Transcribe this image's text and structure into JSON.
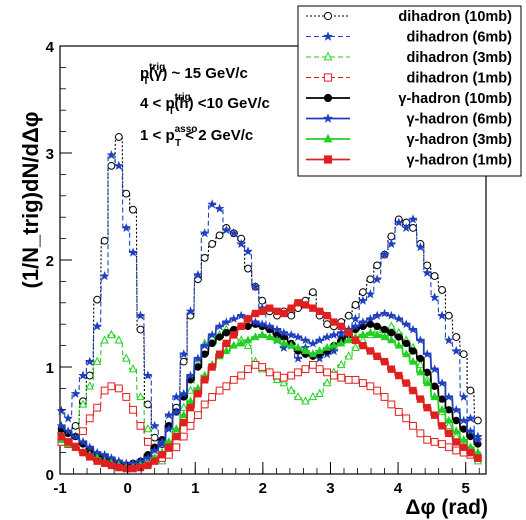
{
  "chart_data": {
    "type": "line",
    "title": "",
    "xlabel": "Δφ (rad)",
    "ylabel": "(1/N_trig)dN/dΔφ",
    "xlim": [
      -1.0,
      5.3
    ],
    "ylim": [
      0,
      4
    ],
    "xticks": [
      -1,
      0,
      1,
      2,
      3,
      4,
      5
    ],
    "yticks": [
      0,
      1,
      2,
      3,
      4
    ],
    "grid": false,
    "legend_position": "top-right",
    "annotations": [
      {
        "base": "p",
        "sub": "T",
        "sup": "trig",
        "tail": "(γ) ~ 15 GeV/c"
      },
      {
        "head": "4 < ",
        "base": "p",
        "sub": "T",
        "sup": "trig",
        "tail": "(h) <10 GeV/c"
      },
      {
        "head": "1 < ",
        "base": "p",
        "sub": "T",
        "sup": "asso",
        "tail": " < 2 GeV/c"
      }
    ],
    "x": [
      -0.98,
      -0.88,
      -0.77,
      -0.66,
      -0.56,
      -0.45,
      -0.34,
      -0.24,
      -0.13,
      -0.02,
      0.08,
      0.19,
      0.3,
      0.4,
      0.51,
      0.61,
      0.72,
      0.83,
      0.93,
      1.04,
      1.14,
      1.25,
      1.36,
      1.46,
      1.57,
      1.68,
      1.78,
      1.89,
      1.99,
      2.1,
      2.21,
      2.31,
      2.42,
      2.52,
      2.63,
      2.74,
      2.84,
      2.95,
      3.05,
      3.16,
      3.27,
      3.37,
      3.48,
      3.59,
      3.69,
      3.8,
      3.9,
      4.01,
      4.12,
      4.22,
      4.33,
      4.43,
      4.54,
      4.65,
      4.75,
      4.86,
      4.97,
      5.07,
      5.18
    ],
    "series": [
      {
        "name": "dihadron (10mb)",
        "color": "#000000",
        "dash": "dot",
        "marker": "open-circle",
        "values": [
          0.38,
          0.35,
          0.45,
          0.68,
          0.92,
          1.63,
          2.18,
          2.88,
          3.15,
          2.62,
          2.47,
          1.35,
          0.65,
          0.34,
          0.28,
          0.45,
          0.62,
          1.05,
          1.48,
          1.82,
          2.02,
          2.15,
          2.23,
          2.3,
          2.25,
          2.2,
          1.92,
          1.75,
          1.62,
          1.52,
          1.48,
          1.52,
          1.48,
          1.55,
          1.62,
          1.7,
          1.48,
          1.4,
          1.38,
          1.42,
          1.48,
          1.58,
          1.7,
          1.82,
          1.95,
          2.05,
          2.22,
          2.38,
          2.35,
          2.3,
          2.15,
          1.95,
          1.85,
          1.72,
          1.48,
          1.28,
          1.12,
          0.78,
          0.5
        ]
      },
      {
        "name": "dihadron (6mb)",
        "color": "#1f3fbf",
        "dash": "dash",
        "marker": "star",
        "values": [
          0.59,
          0.52,
          0.75,
          0.92,
          1.05,
          1.38,
          1.85,
          2.98,
          2.88,
          2.3,
          2.07,
          1.48,
          0.92,
          0.45,
          0.28,
          0.55,
          0.72,
          1.12,
          1.52,
          1.86,
          2.25,
          2.52,
          2.48,
          2.28,
          2.25,
          2.15,
          2.08,
          1.75,
          1.55,
          1.35,
          1.25,
          1.18,
          1.2,
          1.08,
          1.18,
          1.12,
          1.08,
          1.12,
          1.15,
          1.28,
          1.35,
          1.45,
          1.62,
          1.68,
          1.82,
          2.05,
          2.15,
          2.35,
          2.3,
          2.38,
          2.12,
          1.88,
          1.65,
          1.48,
          1.25,
          1.15,
          0.72,
          0.52,
          0.35
        ]
      },
      {
        "name": "dihadron (3mb)",
        "color": "#22d022",
        "dash": "dash",
        "marker": "open-triangle",
        "values": [
          0.38,
          0.3,
          0.35,
          0.65,
          0.82,
          1.05,
          1.25,
          1.3,
          1.25,
          1.08,
          0.98,
          0.72,
          0.42,
          0.18,
          0.12,
          0.2,
          0.38,
          0.62,
          0.78,
          1.02,
          1.22,
          1.28,
          1.3,
          1.35,
          1.32,
          1.25,
          1.2,
          1.05,
          0.98,
          0.95,
          0.88,
          0.85,
          0.78,
          0.72,
          0.68,
          0.72,
          0.75,
          0.85,
          0.95,
          1.02,
          1.1,
          1.18,
          1.25,
          1.3,
          1.35,
          1.32,
          1.38,
          1.32,
          1.25,
          1.18,
          1.02,
          0.88,
          0.72,
          0.58,
          0.45,
          0.35,
          0.25,
          0.18,
          0.12
        ]
      },
      {
        "name": "dihadron (1mb)",
        "color": "#e02020",
        "dash": "dash",
        "marker": "open-square",
        "values": [
          0.3,
          0.28,
          0.32,
          0.4,
          0.52,
          0.62,
          0.78,
          0.82,
          0.8,
          0.72,
          0.6,
          0.45,
          0.3,
          0.2,
          0.15,
          0.18,
          0.25,
          0.35,
          0.45,
          0.55,
          0.65,
          0.72,
          0.78,
          0.82,
          0.88,
          0.92,
          0.98,
          1.02,
          1.0,
          0.95,
          0.92,
          0.9,
          0.92,
          0.95,
          0.98,
          1.02,
          0.98,
          0.95,
          0.92,
          0.9,
          0.88,
          0.88,
          0.85,
          0.82,
          0.78,
          0.72,
          0.65,
          0.58,
          0.52,
          0.45,
          0.38,
          0.32,
          0.3,
          0.28,
          0.25,
          0.22,
          0.2,
          0.18,
          0.15
        ]
      },
      {
        "name": "γ-hadron (10mb)",
        "color": "#000000",
        "dash": "solid",
        "marker": "filled-circle",
        "values": [
          0.42,
          0.38,
          0.35,
          0.28,
          0.22,
          0.18,
          0.15,
          0.12,
          0.1,
          0.08,
          0.1,
          0.12,
          0.18,
          0.25,
          0.32,
          0.45,
          0.58,
          0.72,
          0.88,
          1.0,
          1.12,
          1.22,
          1.28,
          1.32,
          1.35,
          1.38,
          1.38,
          1.4,
          1.38,
          1.35,
          1.3,
          1.28,
          1.22,
          1.15,
          1.12,
          1.1,
          1.12,
          1.15,
          1.2,
          1.25,
          1.3,
          1.35,
          1.38,
          1.4,
          1.38,
          1.35,
          1.32,
          1.28,
          1.22,
          1.15,
          1.08,
          0.95,
          0.82,
          0.7,
          0.6,
          0.5,
          0.42,
          0.35,
          0.28
        ]
      },
      {
        "name": "γ-hadron (6mb)",
        "color": "#1f3fbf",
        "dash": "solid",
        "marker": "star",
        "values": [
          0.45,
          0.4,
          0.35,
          0.3,
          0.25,
          0.2,
          0.18,
          0.15,
          0.12,
          0.1,
          0.1,
          0.12,
          0.15,
          0.22,
          0.3,
          0.42,
          0.58,
          0.75,
          0.92,
          1.08,
          1.2,
          1.3,
          1.38,
          1.42,
          1.45,
          1.48,
          1.45,
          1.42,
          1.4,
          1.38,
          1.35,
          1.32,
          1.3,
          1.28,
          1.25,
          1.22,
          1.25,
          1.28,
          1.3,
          1.32,
          1.35,
          1.38,
          1.42,
          1.45,
          1.48,
          1.5,
          1.48,
          1.45,
          1.4,
          1.35,
          1.25,
          1.12,
          0.98,
          0.85,
          0.72,
          0.6,
          0.5,
          0.4,
          0.32
        ]
      },
      {
        "name": "γ-hadron (3mb)",
        "color": "#22d022",
        "dash": "solid",
        "marker": "filled-triangle",
        "values": [
          0.32,
          0.28,
          0.25,
          0.2,
          0.18,
          0.15,
          0.12,
          0.1,
          0.08,
          0.06,
          0.06,
          0.08,
          0.1,
          0.15,
          0.2,
          0.3,
          0.42,
          0.55,
          0.68,
          0.8,
          0.92,
          1.02,
          1.1,
          1.15,
          1.2,
          1.22,
          1.25,
          1.28,
          1.3,
          1.28,
          1.25,
          1.22,
          1.2,
          1.18,
          1.15,
          1.12,
          1.15,
          1.18,
          1.2,
          1.22,
          1.25,
          1.28,
          1.3,
          1.32,
          1.3,
          1.28,
          1.25,
          1.2,
          1.12,
          1.05,
          0.95,
          0.85,
          0.72,
          0.6,
          0.5,
          0.4,
          0.32,
          0.25,
          0.2
        ]
      },
      {
        "name": "γ-hadron (1mb)",
        "color": "#e02020",
        "dash": "solid",
        "marker": "filled-square",
        "values": [
          0.35,
          0.3,
          0.25,
          0.2,
          0.16,
          0.12,
          0.1,
          0.08,
          0.06,
          0.05,
          0.05,
          0.06,
          0.08,
          0.12,
          0.18,
          0.25,
          0.35,
          0.48,
          0.62,
          0.75,
          0.88,
          1.0,
          1.12,
          1.22,
          1.3,
          1.38,
          1.45,
          1.5,
          1.52,
          1.55,
          1.52,
          1.5,
          1.55,
          1.6,
          1.58,
          1.55,
          1.52,
          1.48,
          1.42,
          1.38,
          1.32,
          1.25,
          1.2,
          1.15,
          1.1,
          1.05,
          0.98,
          0.92,
          0.85,
          0.78,
          0.7,
          0.62,
          0.55,
          0.45,
          0.38,
          0.3,
          0.25,
          0.2,
          0.15
        ]
      }
    ]
  }
}
